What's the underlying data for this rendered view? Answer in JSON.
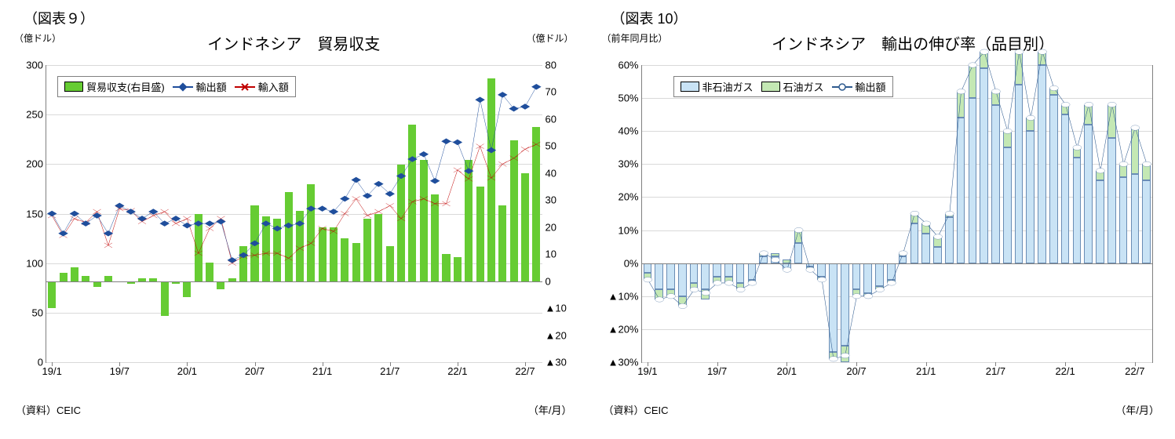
{
  "chart9": {
    "panel_label": "（図表９）",
    "title": "インドネシア　貿易収支",
    "y_left_label": "（億ドル）",
    "y_right_label": "（億ドル）",
    "x_label_right": "（年/月）",
    "source": "（資料）CEIC",
    "y_left": {
      "min": 0,
      "max": 300,
      "ticks": [
        0,
        50,
        100,
        150,
        200,
        250,
        300
      ]
    },
    "y_right": {
      "min": -30,
      "max": 80,
      "ticks_pos": [
        0,
        10,
        20,
        30,
        40,
        50,
        60,
        70,
        80
      ],
      "ticks_neg": [
        -10,
        -20,
        -30
      ]
    },
    "x_major": [
      "19/1",
      "19/7",
      "20/1",
      "20/7",
      "21/1",
      "21/7",
      "22/1",
      "22/7"
    ],
    "bar_color": "#66cc33",
    "line_export_color": "#1f4e9c",
    "line_import_color": "#c00000",
    "grid_color": "#d9d9d9",
    "legend": {
      "items": [
        {
          "label": "貿易収支(右目盛)",
          "type": "box",
          "color": "#66cc33"
        },
        {
          "label": "輸出額",
          "type": "diamond",
          "color": "#1f4e9c"
        },
        {
          "label": "輸入額",
          "type": "x",
          "color": "#c00000"
        }
      ]
    },
    "n_points": 44,
    "trade_balance": [
      -10,
      3,
      5,
      2,
      -2,
      2,
      0,
      -1,
      1,
      1,
      -13,
      -1,
      -6,
      25,
      7,
      -3,
      1,
      13,
      28,
      24,
      23,
      33,
      26,
      36,
      20,
      20,
      16,
      14,
      23,
      25,
      13,
      43,
      58,
      45,
      32,
      10,
      9,
      45,
      35,
      75,
      28,
      52,
      40,
      57
    ],
    "exports": [
      150,
      130,
      150,
      140,
      148,
      130,
      158,
      152,
      145,
      152,
      140,
      145,
      138,
      140,
      140,
      142,
      103,
      108,
      120,
      140,
      135,
      138,
      140,
      155,
      155,
      152,
      165,
      184,
      168,
      180,
      170,
      188,
      205,
      210,
      183,
      223,
      222,
      193,
      265,
      214,
      270,
      256,
      258,
      278
    ],
    "imports": [
      148,
      128,
      145,
      141,
      152,
      118,
      155,
      153,
      142,
      148,
      152,
      140,
      145,
      110,
      135,
      145,
      100,
      107,
      108,
      110,
      110,
      105,
      115,
      120,
      135,
      132,
      150,
      165,
      148,
      152,
      158,
      145,
      162,
      165,
      160,
      160,
      194,
      185,
      218,
      186,
      200,
      206,
      215,
      220
    ]
  },
  "chart10": {
    "panel_label": "（図表 10）",
    "title": "インドネシア　輸出の伸び率（品目別）",
    "y_left_label": "（前年同月比）",
    "x_label_right": "（年/月）",
    "source": "（資料）CEIC",
    "y": {
      "min": -30,
      "max": 60,
      "ticks_pos": [
        0,
        10,
        20,
        30,
        40,
        50,
        60
      ],
      "ticks_neg": [
        -10,
        -20,
        -30
      ]
    },
    "x_major": [
      "19/1",
      "19/7",
      "20/1",
      "20/7",
      "21/1",
      "21/7",
      "22/1",
      "22/7"
    ],
    "bar_nonoil_color": "#c9e3f5",
    "bar_oil_color": "#c4e8b4",
    "line_color": "#2f5b8f",
    "marker_fill": "#ffffff",
    "grid_color": "#d9d9d9",
    "legend": {
      "items": [
        {
          "label": "非石油ガス",
          "type": "box",
          "color": "#c9e3f5"
        },
        {
          "label": "石油ガス",
          "type": "box",
          "color": "#c4e8b4"
        },
        {
          "label": "輸出額",
          "type": "circle",
          "color": "#2f5b8f"
        }
      ]
    },
    "n_points": 44,
    "non_oil": [
      -3,
      -8,
      -8,
      -10,
      -6,
      -8,
      -4,
      -4,
      -6,
      -5,
      2,
      2,
      -2,
      6,
      -1,
      -4,
      -27,
      -25,
      -8,
      -9,
      -7,
      -5,
      2,
      12,
      9,
      5,
      14,
      44,
      50,
      59,
      48,
      35,
      54,
      40,
      60,
      51,
      45,
      32,
      42,
      25,
      38,
      26,
      27,
      25
    ],
    "oil": [
      -2,
      -3,
      -2,
      -3,
      -2,
      -3,
      -2,
      -2,
      -2,
      -1,
      1,
      1,
      1,
      4,
      -1,
      -1,
      -2,
      -5,
      -2,
      -1,
      -1,
      -1,
      1,
      3,
      3,
      3,
      1,
      8,
      10,
      5,
      4,
      5,
      10,
      4,
      4,
      2,
      3,
      3,
      6,
      3,
      10,
      4,
      14,
      5
    ],
    "exports": [
      -5,
      -11,
      -10,
      -13,
      -8,
      -9,
      -6,
      -6,
      -8,
      -6,
      3,
      1,
      -2,
      10,
      -2,
      -5,
      -29,
      -28,
      -10,
      -10,
      -8,
      -6,
      3,
      15,
      12,
      8,
      15,
      52,
      60,
      64,
      52,
      40,
      64,
      44,
      64,
      53,
      48,
      35,
      48,
      28,
      48,
      30,
      41,
      30
    ]
  }
}
